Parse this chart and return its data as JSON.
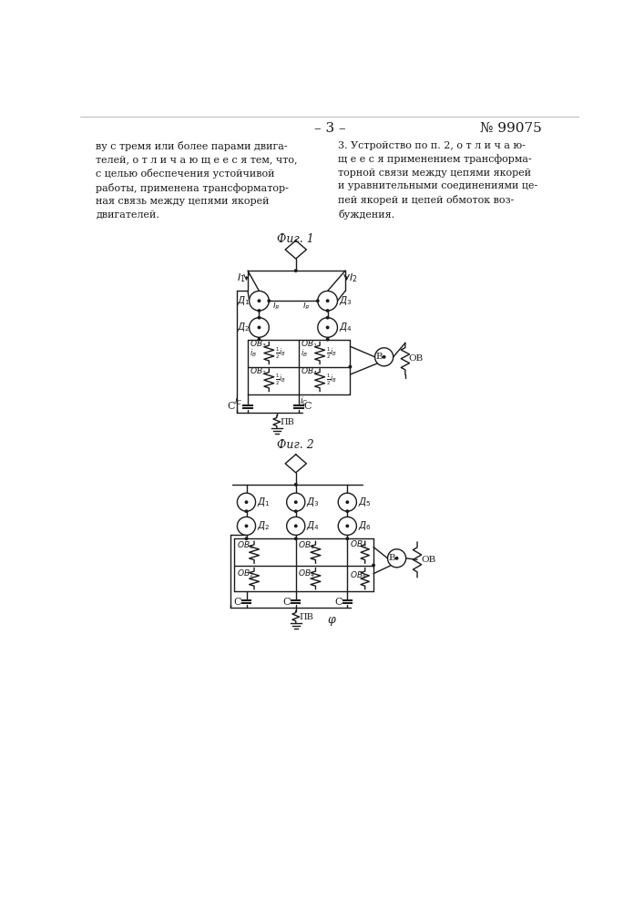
{
  "page_header_left": "– 3 –",
  "page_header_right": "№ 99075",
  "fig1_label": "Фиг. 1",
  "fig2_label": "Фиг. 2",
  "fig2_phi_label": "φ",
  "background_color": "#ffffff",
  "line_color": "#1a1a1a",
  "line_width": 1.0
}
